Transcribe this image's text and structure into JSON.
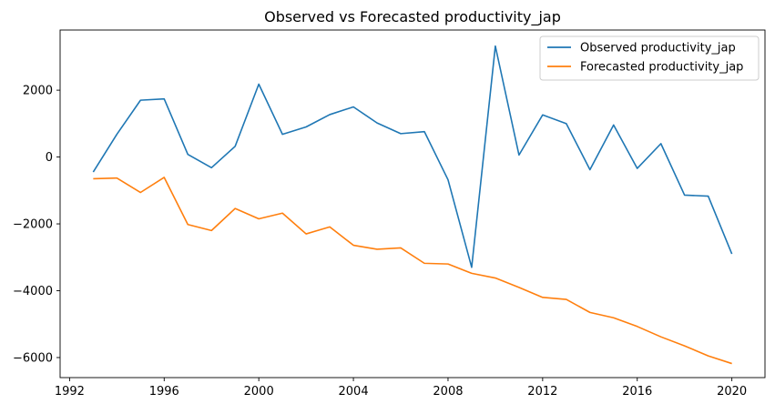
{
  "chart_data": {
    "type": "line",
    "title": "Observed vs Forecasted productivity_jap",
    "xlabel": "",
    "ylabel": "",
    "xlim": [
      1991.6,
      2021.4
    ],
    "ylim": [
      -6600,
      3800
    ],
    "x_ticks": [
      1992,
      1996,
      2000,
      2004,
      2008,
      2012,
      2016,
      2020
    ],
    "x_tick_labels": [
      "1992",
      "1996",
      "2000",
      "2004",
      "2008",
      "2012",
      "2016",
      "2020"
    ],
    "y_ticks": [
      -6000,
      -4000,
      -2000,
      0,
      2000
    ],
    "y_tick_labels": [
      "−6000",
      "−4000",
      "−2000",
      "0",
      "2000"
    ],
    "grid": false,
    "legend_position": "top-right",
    "x": [
      1993,
      1994,
      1995,
      1996,
      1997,
      1998,
      1999,
      2000,
      2001,
      2002,
      2003,
      2004,
      2005,
      2006,
      2007,
      2008,
      2009,
      2010,
      2011,
      2012,
      2013,
      2014,
      2015,
      2016,
      2017,
      2018,
      2019,
      2020
    ],
    "series": [
      {
        "name": "Observed productivity_jap",
        "color": "#1f77b4",
        "values": [
          -450,
          680,
          1700,
          1740,
          80,
          -320,
          320,
          2180,
          680,
          900,
          1270,
          1500,
          1020,
          700,
          760,
          -680,
          -3300,
          3320,
          60,
          1260,
          1000,
          -380,
          960,
          -340,
          400,
          -1140,
          -1170,
          -2900
        ]
      },
      {
        "name": "Forecasted productivity_jap",
        "color": "#ff7f0e",
        "values": [
          -650,
          -630,
          -1060,
          -610,
          -2020,
          -2200,
          -1540,
          -1850,
          -1680,
          -2300,
          -2090,
          -2640,
          -2760,
          -2720,
          -3180,
          -3200,
          -3480,
          -3620,
          -3900,
          -4200,
          -4260,
          -4650,
          -4810,
          -5070,
          -5380,
          -5650,
          -5950,
          -6180
        ]
      }
    ]
  }
}
